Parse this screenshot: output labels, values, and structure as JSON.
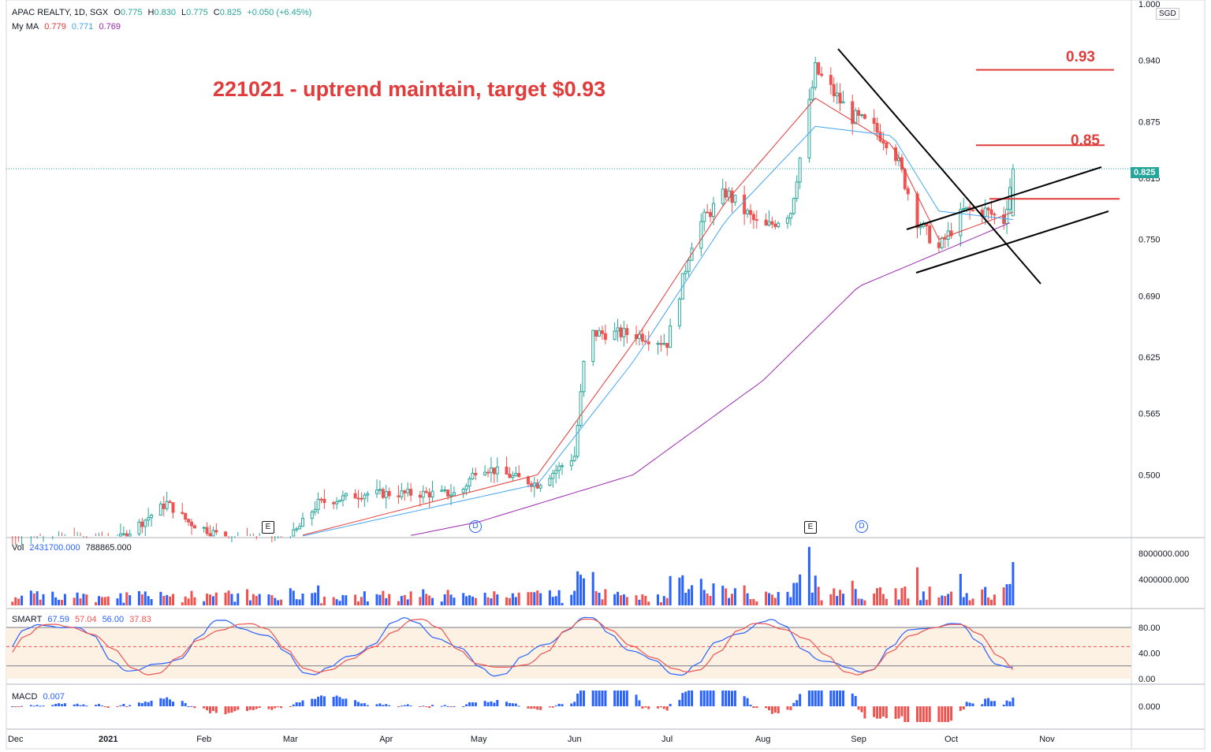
{
  "header": {
    "symbol": "APAC REALTY, 1D, SGX",
    "o_label": "O",
    "o": "0.775",
    "h_label": "H",
    "h": "0.830",
    "l_label": "L",
    "l": "0.775",
    "c_label": "C",
    "c": "0.825",
    "change": "+0.050 (+6.45%)",
    "ma_label": "My MA",
    "ma1": "0.779",
    "ma2": "0.771",
    "ma3": "0.769"
  },
  "currency": "SGD",
  "last_price_tag": "0.825",
  "annotation": "221021 - uptrend maintain, target $0.93",
  "targets": [
    "0.93",
    "0.85"
  ],
  "events": [
    {
      "label": "E",
      "kind": "earnings",
      "date": "2021-02-26"
    },
    {
      "label": "D",
      "kind": "dividend",
      "date": "2021-05-06"
    },
    {
      "label": "E",
      "kind": "earnings",
      "date": "2021-08-13"
    },
    {
      "label": "D",
      "kind": "dividend",
      "date": "2021-08-30"
    }
  ],
  "volume_legend": {
    "label": "Vol",
    "v1": "2431700.000",
    "v2": "788865.000"
  },
  "smart_legend": {
    "label": "SMART",
    "v1": "67.59",
    "v2": "57.04",
    "v3": "56.00",
    "v4": "37.83"
  },
  "macd_legend": {
    "label": "MACD",
    "v1": "0.007"
  },
  "colors": {
    "up": "#26a69a",
    "down": "#ef5350",
    "ma_fast": "#e53935",
    "ma_mid": "#42a5f5",
    "ma_slow": "#9c27b0",
    "annotation": "#e03c3c",
    "vol_up": "#2962ff",
    "vol_down": "#ef5350"
  },
  "chart_data": {
    "type": "candlestick",
    "price_axis": {
      "ticks": [
        "1.000",
        "0.940",
        "0.875",
        "0.815",
        "0.750",
        "0.690",
        "0.625",
        "0.565",
        "0.500"
      ],
      "ylim": [
        0.435,
        1.0
      ]
    },
    "time_axis": {
      "ticks": [
        "Dec",
        "2021",
        "Feb",
        "Mar",
        "Apr",
        "May",
        "Jun",
        "Jul",
        "Aug",
        "Sep",
        "Oct",
        "Nov"
      ]
    },
    "volume_axis": {
      "ticks": [
        "8000000.000",
        "4000000.000"
      ]
    },
    "smart_axis": {
      "ticks": [
        "80.00",
        "40.00",
        "0.00"
      ]
    },
    "macd_axis": {
      "ticks": [
        "0.000"
      ]
    },
    "last_close": 0.825,
    "target_levels": [
      0.93,
      0.85
    ],
    "close_series": [
      [
        "2020-12-01",
        0.42
      ],
      [
        "2020-12-15",
        0.43
      ],
      [
        "2021-01-04",
        0.43
      ],
      [
        "2021-01-20",
        0.47
      ],
      [
        "2021-01-27",
        0.45
      ],
      [
        "2021-02-10",
        0.43
      ],
      [
        "2021-02-26",
        0.42
      ],
      [
        "2021-03-10",
        0.47
      ],
      [
        "2021-03-25",
        0.48
      ],
      [
        "2021-04-10",
        0.48
      ],
      [
        "2021-04-25",
        0.48
      ],
      [
        "2021-05-01",
        0.51
      ],
      [
        "2021-05-10",
        0.5
      ],
      [
        "2021-05-20",
        0.49
      ],
      [
        "2021-06-01",
        0.52
      ],
      [
        "2021-06-05",
        0.65
      ],
      [
        "2021-06-20",
        0.65
      ],
      [
        "2021-07-01",
        0.64
      ],
      [
        "2021-07-10",
        0.76
      ],
      [
        "2021-07-20",
        0.8
      ],
      [
        "2021-08-01",
        0.76
      ],
      [
        "2021-08-10",
        0.78
      ],
      [
        "2021-08-18",
        0.93
      ],
      [
        "2021-08-30",
        0.88
      ],
      [
        "2021-09-05",
        0.87
      ],
      [
        "2021-09-12",
        0.85
      ],
      [
        "2021-09-20",
        0.77
      ],
      [
        "2021-09-27",
        0.74
      ],
      [
        "2021-10-05",
        0.78
      ],
      [
        "2021-10-12",
        0.78
      ],
      [
        "2021-10-18",
        0.77
      ],
      [
        "2021-10-21",
        0.825
      ]
    ],
    "ma_series": [
      {
        "name": "0.779",
        "values": [
          [
            "2020-12-01",
            0.42
          ],
          [
            "2021-02-26",
            0.43
          ],
          [
            "2021-05-20",
            0.5
          ],
          [
            "2021-06-20",
            0.64
          ],
          [
            "2021-07-20",
            0.79
          ],
          [
            "2021-08-18",
            0.9
          ],
          [
            "2021-09-12",
            0.85
          ],
          [
            "2021-09-27",
            0.75
          ],
          [
            "2021-10-21",
            0.779
          ]
        ]
      },
      {
        "name": "0.771",
        "values": [
          [
            "2020-12-01",
            0.43
          ],
          [
            "2021-02-26",
            0.43
          ],
          [
            "2021-05-20",
            0.49
          ],
          [
            "2021-06-20",
            0.62
          ],
          [
            "2021-07-20",
            0.77
          ],
          [
            "2021-08-18",
            0.87
          ],
          [
            "2021-09-12",
            0.86
          ],
          [
            "2021-09-27",
            0.78
          ],
          [
            "2021-10-21",
            0.771
          ]
        ]
      },
      {
        "name": "0.769",
        "values": [
          [
            "2021-01-01",
            0.4
          ],
          [
            "2021-03-01",
            0.41
          ],
          [
            "2021-05-01",
            0.45
          ],
          [
            "2021-06-20",
            0.5
          ],
          [
            "2021-08-01",
            0.6
          ],
          [
            "2021-09-01",
            0.7
          ],
          [
            "2021-10-21",
            0.769
          ]
        ]
      }
    ]
  }
}
